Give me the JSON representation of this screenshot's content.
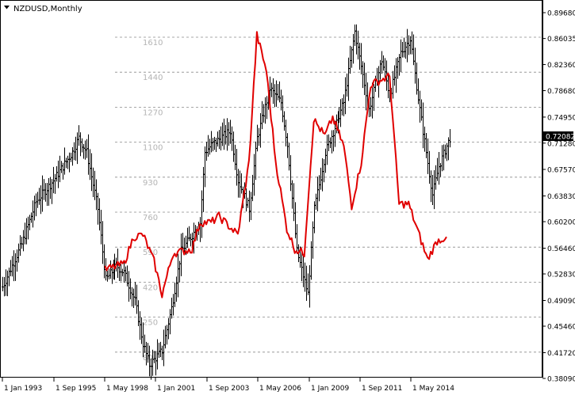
{
  "window": {
    "menu_icon": "triangle-down-icon",
    "title": "NZDUSD,Monthly"
  },
  "colors": {
    "price_bars": "#000000",
    "overlay_line": "#e00000",
    "grid": "#8a8a8a",
    "level_label": "#b4b4b4",
    "current_price_bg": "#000000",
    "current_price_text": "#ffffff"
  },
  "chart_data": [
    {
      "type": "bar",
      "series": [
        {
          "name": "NZDUSD",
          "kind": "ohlc-bars"
        }
      ],
      "title": "NZDUSD,Monthly",
      "x_tick_labels": [
        "1 Jan 1993",
        "1 Sep 1995",
        "1 May 1998",
        "1 Jan 2001",
        "1 Sep 2003",
        "1 May 2006",
        "1 Jan 2009",
        "1 Sep 2011",
        "1 May 2014"
      ],
      "y_tick_labels": [
        "0.89680",
        "0.86035",
        "0.82360",
        "0.78680",
        "0.74950",
        "0.71280",
        "0.67570",
        "0.63830",
        "0.60200",
        "0.56460",
        "0.52830",
        "0.49090",
        "0.45460",
        "0.41720",
        "0.38090"
      ],
      "ylim": [
        0.3809,
        0.8968
      ],
      "current_price": "0.72082",
      "approx_path": [
        [
          "1993-01",
          0.51
        ],
        [
          "1994-01",
          0.57
        ],
        [
          "1994-10",
          0.63
        ],
        [
          "1995-09",
          0.66
        ],
        [
          "1996-09",
          0.7
        ],
        [
          "1997-01",
          0.72
        ],
        [
          "1997-06",
          0.7
        ],
        [
          "1998-01",
          0.62
        ],
        [
          "1998-06",
          0.52
        ],
        [
          "1999-01",
          0.54
        ],
        [
          "1999-06",
          0.53
        ],
        [
          "2000-01",
          0.49
        ],
        [
          "2000-06",
          0.43
        ],
        [
          "2000-10",
          0.4
        ],
        [
          "2001-06",
          0.42
        ],
        [
          "2001-12",
          0.48
        ],
        [
          "2002-06",
          0.56
        ],
        [
          "2003-06",
          0.6
        ],
        [
          "2003-09",
          0.7
        ],
        [
          "2004-01",
          0.71
        ],
        [
          "2005-01",
          0.73
        ],
        [
          "2005-06",
          0.66
        ],
        [
          "2006-01",
          0.62
        ],
        [
          "2006-06",
          0.72
        ],
        [
          "2007-02",
          0.79
        ],
        [
          "2007-09",
          0.77
        ],
        [
          "2008-01",
          0.71
        ],
        [
          "2008-07",
          0.56
        ],
        [
          "2009-02",
          0.5
        ],
        [
          "2009-06",
          0.62
        ],
        [
          "2010-01",
          0.7
        ],
        [
          "2011-01",
          0.77
        ],
        [
          "2011-08",
          0.87
        ],
        [
          "2012-05",
          0.76
        ],
        [
          "2013-01",
          0.83
        ],
        [
          "2013-06",
          0.78
        ],
        [
          "2014-01",
          0.84
        ],
        [
          "2014-07",
          0.86
        ],
        [
          "2015-01",
          0.76
        ],
        [
          "2015-09",
          0.64
        ],
        [
          "2016-01",
          0.68
        ],
        [
          "2016-08",
          0.72
        ]
      ]
    },
    {
      "type": "line",
      "series": [
        {
          "name": "",
          "color": "#e00000"
        }
      ],
      "level_labels": [
        "1610",
        "1440",
        "1270",
        "1100",
        "930",
        "760",
        "590",
        "420",
        "250",
        "80"
      ],
      "ylim": [
        80,
        1610
      ],
      "approx_values": [
        [
          "1998-06",
          480
        ],
        [
          "1999-06",
          510
        ],
        [
          "1999-12",
          640
        ],
        [
          "2000-06",
          650
        ],
        [
          "2001-01",
          520
        ],
        [
          "2001-06",
          360
        ],
        [
          "2002-01",
          560
        ],
        [
          "2003-01",
          580
        ],
        [
          "2003-06",
          710
        ],
        [
          "2004-01",
          710
        ],
        [
          "2004-06",
          740
        ],
        [
          "2005-06",
          650
        ],
        [
          "2006-01",
          1000
        ],
        [
          "2006-06",
          1620
        ],
        [
          "2006-12",
          1450
        ],
        [
          "2007-06",
          1000
        ],
        [
          "2008-01",
          680
        ],
        [
          "2008-06",
          580
        ],
        [
          "2008-12",
          560
        ],
        [
          "2009-06",
          1210
        ],
        [
          "2010-01",
          1130
        ],
        [
          "2010-06",
          1220
        ],
        [
          "2011-01",
          1080
        ],
        [
          "2011-06",
          790
        ],
        [
          "2011-12",
          1000
        ],
        [
          "2012-06",
          1380
        ],
        [
          "2013-06",
          1420
        ],
        [
          "2013-12",
          800
        ],
        [
          "2014-06",
          800
        ],
        [
          "2015-06",
          530
        ],
        [
          "2015-12",
          620
        ],
        [
          "2016-06",
          640
        ]
      ]
    }
  ]
}
